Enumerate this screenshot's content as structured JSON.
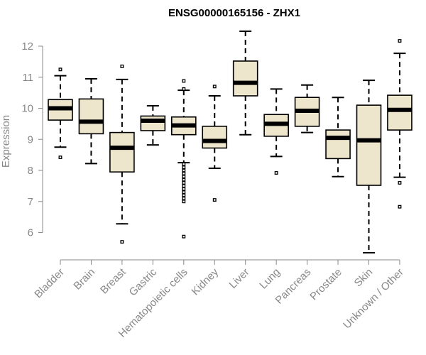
{
  "chart_data": {
    "type": "boxplot",
    "title": "ENSG00000165156 - ZHX1",
    "ylabel": "Expression",
    "xlabel": "",
    "ylim": [
      5.3,
      12.6
    ],
    "yticks": [
      6,
      7,
      8,
      9,
      10,
      11,
      12
    ],
    "box_color": "#ede6cc",
    "line_color": "#000000",
    "axis_color": "#888888",
    "categories": [
      "Bladder",
      "Brain",
      "Breast",
      "Gastric",
      "Hematopoietic cells",
      "Kidney",
      "Liver",
      "Lung",
      "Pancreas",
      "Prostate",
      "Skin",
      "Unknown / Other"
    ],
    "boxes": [
      {
        "name": "Bladder",
        "min": 8.75,
        "q1": 9.62,
        "median": 10.0,
        "q3": 10.28,
        "max": 11.05,
        "outliers": [
          11.25,
          8.42
        ]
      },
      {
        "name": "Brain",
        "min": 8.22,
        "q1": 9.18,
        "median": 9.57,
        "q3": 10.3,
        "max": 10.95,
        "outliers": []
      },
      {
        "name": "Breast",
        "min": 6.28,
        "q1": 7.95,
        "median": 8.73,
        "q3": 9.22,
        "max": 10.93,
        "outliers": [
          11.35,
          5.7
        ]
      },
      {
        "name": "Gastric",
        "min": 8.82,
        "q1": 9.28,
        "median": 9.6,
        "q3": 9.75,
        "max": 10.08,
        "outliers": []
      },
      {
        "name": "Hematopoietic cells",
        "min": 8.25,
        "q1": 9.15,
        "median": 9.45,
        "q3": 9.72,
        "max": 10.58,
        "outliers": [
          10.88,
          10.62,
          8.2,
          8.1,
          8.0,
          7.9,
          7.8,
          7.7,
          7.6,
          7.5,
          7.4,
          7.3,
          7.2,
          7.1,
          7.0,
          5.87
        ]
      },
      {
        "name": "Kidney",
        "min": 8.07,
        "q1": 8.72,
        "median": 8.95,
        "q3": 9.42,
        "max": 10.4,
        "outliers": [
          10.7,
          7.05
        ]
      },
      {
        "name": "Liver",
        "min": 9.15,
        "q1": 10.4,
        "median": 10.82,
        "q3": 11.52,
        "max": 12.48,
        "outliers": []
      },
      {
        "name": "Lung",
        "min": 8.45,
        "q1": 9.1,
        "median": 9.5,
        "q3": 9.8,
        "max": 10.62,
        "outliers": [
          7.92
        ]
      },
      {
        "name": "Pancreas",
        "min": 9.22,
        "q1": 9.42,
        "median": 9.92,
        "q3": 10.35,
        "max": 10.75,
        "outliers": []
      },
      {
        "name": "Prostate",
        "min": 7.8,
        "q1": 8.38,
        "median": 9.05,
        "q3": 9.3,
        "max": 10.35,
        "outliers": []
      },
      {
        "name": "Skin",
        "min": 5.35,
        "q1": 7.52,
        "median": 8.97,
        "q3": 10.1,
        "max": 10.9,
        "outliers": []
      },
      {
        "name": "Unknown / Other",
        "min": 7.78,
        "q1": 9.3,
        "median": 9.95,
        "q3": 10.42,
        "max": 11.77,
        "outliers": [
          12.17,
          7.6,
          6.83
        ]
      }
    ]
  }
}
